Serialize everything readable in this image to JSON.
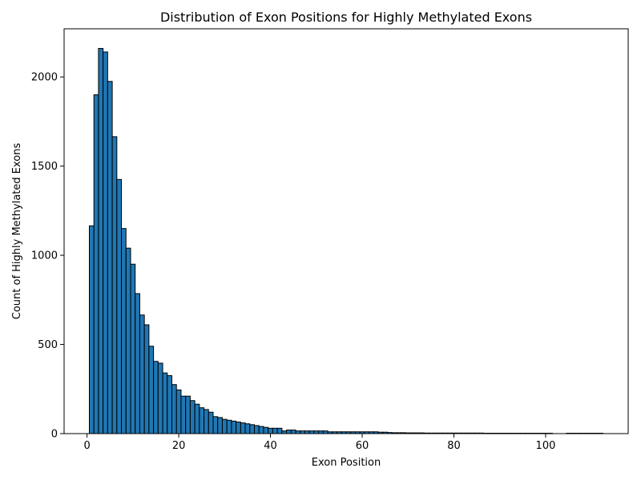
{
  "chart_data": {
    "type": "bar",
    "title": "Distribution of Exon Positions for Highly Methylated Exons",
    "xlabel": "Exon Position",
    "ylabel": "Count of Highly Methylated Exons",
    "xlim": [
      -5,
      118
    ],
    "ylim": [
      0,
      2270
    ],
    "xticks": [
      0,
      20,
      40,
      60,
      80,
      100
    ],
    "yticks": [
      0,
      500,
      1000,
      1500,
      2000
    ],
    "bar_color": "#1f77b4",
    "edge_color": "#000000",
    "grid": false,
    "bin_width": 1,
    "x": [
      1,
      2,
      3,
      4,
      5,
      6,
      7,
      8,
      9,
      10,
      11,
      12,
      13,
      14,
      15,
      16,
      17,
      18,
      19,
      20,
      21,
      22,
      23,
      24,
      25,
      26,
      27,
      28,
      29,
      30,
      31,
      32,
      33,
      34,
      35,
      36,
      37,
      38,
      39,
      40,
      41,
      42,
      43,
      44,
      45,
      46,
      47,
      48,
      49,
      50,
      51,
      52,
      53,
      54,
      55,
      56,
      57,
      58,
      59,
      60,
      61,
      62,
      63,
      64,
      65,
      66,
      67,
      68,
      69,
      70,
      71,
      72,
      73,
      74,
      75,
      76,
      77,
      78,
      79,
      80,
      81,
      82,
      83,
      84,
      85,
      86,
      87,
      88,
      89,
      90,
      91,
      92,
      93,
      94,
      95,
      96,
      97,
      98,
      99,
      100,
      101,
      102,
      103,
      104,
      105,
      106,
      107,
      108,
      109,
      110,
      111,
      112
    ],
    "values": [
      1165,
      1900,
      2160,
      2140,
      1975,
      1665,
      1425,
      1150,
      1040,
      950,
      785,
      665,
      610,
      490,
      405,
      395,
      340,
      325,
      275,
      245,
      210,
      210,
      185,
      165,
      145,
      135,
      120,
      95,
      90,
      80,
      75,
      70,
      65,
      60,
      55,
      50,
      45,
      40,
      35,
      30,
      30,
      30,
      15,
      20,
      20,
      15,
      15,
      15,
      15,
      15,
      15,
      15,
      10,
      10,
      10,
      10,
      10,
      10,
      10,
      10,
      10,
      10,
      10,
      8,
      8,
      6,
      5,
      5,
      5,
      4,
      4,
      4,
      4,
      3,
      3,
      3,
      3,
      3,
      3,
      3,
      3,
      3,
      3,
      3,
      3,
      3,
      2,
      2,
      2,
      2,
      2,
      2,
      2,
      2,
      2,
      2,
      2,
      2,
      2,
      2,
      2,
      0,
      0,
      0,
      2,
      2,
      2,
      2,
      2,
      2,
      2,
      2
    ]
  }
}
